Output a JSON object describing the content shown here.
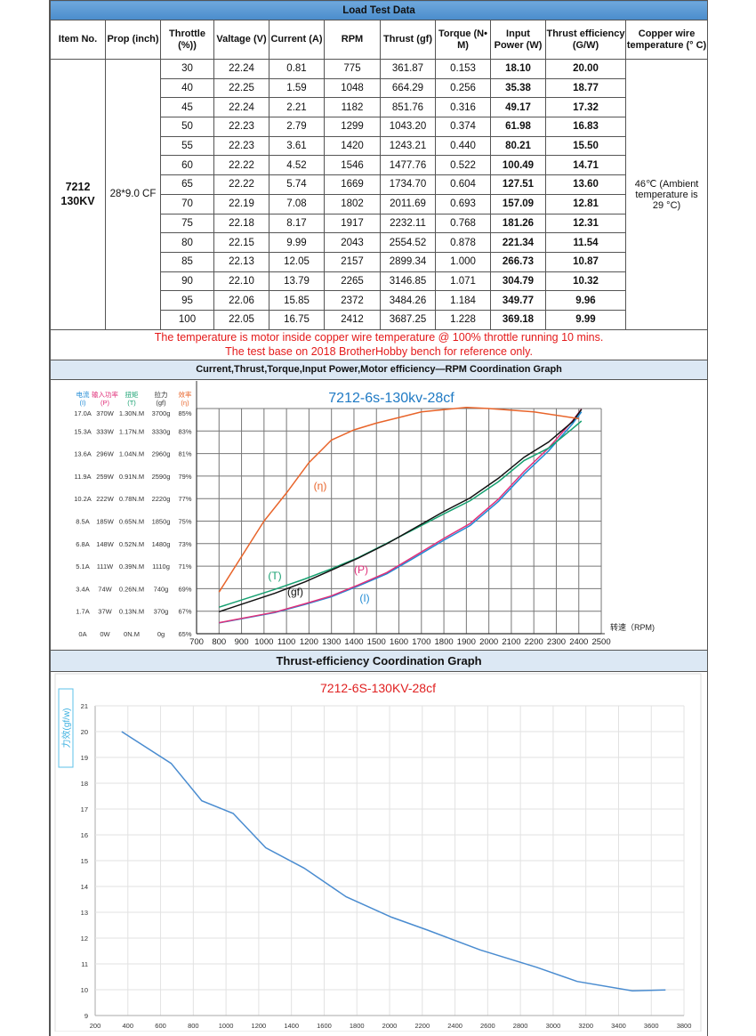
{
  "table": {
    "title": "Load Test Data",
    "headers": [
      "Item No.",
      "Prop (inch)",
      "Throttle (%))",
      "Valtage (V)",
      "Current (A)",
      "RPM",
      "Thrust (gf)",
      "Torque  (N• M)",
      "Input Power (W)",
      "Thrust efficiency (G/W)",
      "Copper wire temperature  (° C)"
    ],
    "item": "7212 130KV",
    "prop": "28*9.0 CF",
    "temperature": "46℃ (Ambient temperature is 29 °C)",
    "rows": [
      [
        "30",
        "22.24",
        "0.81",
        "775",
        "361.87",
        "0.153",
        "18.10",
        "20.00"
      ],
      [
        "40",
        "22.25",
        "1.59",
        "1048",
        "664.29",
        "0.256",
        "35.38",
        "18.77"
      ],
      [
        "45",
        "22.24",
        "2.21",
        "1182",
        "851.76",
        "0.316",
        "49.17",
        "17.32"
      ],
      [
        "50",
        "22.23",
        "2.79",
        "1299",
        "1043.20",
        "0.374",
        "61.98",
        "16.83"
      ],
      [
        "55",
        "22.23",
        "3.61",
        "1420",
        "1243.21",
        "0.440",
        "80.21",
        "15.50"
      ],
      [
        "60",
        "22.22",
        "4.52",
        "1546",
        "1477.76",
        "0.522",
        "100.49",
        "14.71"
      ],
      [
        "65",
        "22.22",
        "5.74",
        "1669",
        "1734.70",
        "0.604",
        "127.51",
        "13.60"
      ],
      [
        "70",
        "22.19",
        "7.08",
        "1802",
        "2011.69",
        "0.693",
        "157.09",
        "12.81"
      ],
      [
        "75",
        "22.18",
        "8.17",
        "1917",
        "2232.11",
        "0.768",
        "181.26",
        "12.31"
      ],
      [
        "80",
        "22.15",
        "9.99",
        "2043",
        "2554.52",
        "0.878",
        "221.34",
        "11.54"
      ],
      [
        "85",
        "22.13",
        "12.05",
        "2157",
        "2899.34",
        "1.000",
        "266.73",
        "10.87"
      ],
      [
        "90",
        "22.10",
        "13.79",
        "2265",
        "3146.85",
        "1.071",
        "304.79",
        "10.32"
      ],
      [
        "95",
        "22.06",
        "15.85",
        "2372",
        "3484.26",
        "1.184",
        "349.77",
        "9.96"
      ],
      [
        "100",
        "22.05",
        "16.75",
        "2412",
        "3687.25",
        "1.228",
        "369.18",
        "9.99"
      ]
    ],
    "note_line1": "The temperature is motor inside copper wire temperature @ 100% throttle running 10 mins.",
    "note_line2": "The test base on 2018 BrotherHobby bench  for reference only."
  },
  "chart_data": [
    {
      "type": "line",
      "section_title": "Current,Thrust,Torque,Input Power,Motor efficiency—RPM   Coordination Graph",
      "title": "7212-6s-130kv-28cf",
      "xlabel": "转速（RPM)",
      "xlim": [
        700,
        2500
      ],
      "x_ticks": [
        "700",
        "800",
        "900",
        "1000",
        "1100",
        "1200",
        "1300",
        "1400",
        "1500",
        "1600",
        "1700",
        "1800",
        "1900",
        "2000",
        "2100",
        "2200",
        "2300",
        "2400",
        "2500"
      ],
      "grid": true,
      "axes": [
        {
          "key": "I",
          "header": "电流",
          "unit": "(I)",
          "color": "#1f8ad4",
          "ticks": [
            "0A",
            "1.7A",
            "3.4A",
            "5.1A",
            "6.8A",
            "8.5A",
            "10.2A",
            "11.9A",
            "13.6A",
            "15.3A",
            "17.0A"
          ],
          "range": [
            0,
            17
          ]
        },
        {
          "key": "P",
          "header": "输入功率",
          "unit": "(P)",
          "color": "#e0307a",
          "ticks": [
            "0W",
            "37W",
            "74W",
            "111W",
            "148W",
            "185W",
            "222W",
            "259W",
            "296W",
            "333W",
            "370W"
          ],
          "range": [
            0,
            370
          ]
        },
        {
          "key": "T",
          "header": "扭矩",
          "unit": "(T)",
          "color": "#16a070",
          "ticks": [
            "0N.M",
            "0.13N.M",
            "0.26N.M",
            "0.39N.M",
            "0.52N.M",
            "0.65N.M",
            "0.78N.M",
            "0.91N.M",
            "1.04N.M",
            "1.17N.M",
            "1.30N.M"
          ],
          "range": [
            0,
            1.3
          ]
        },
        {
          "key": "gf",
          "header": "拉力",
          "unit": "(gf)",
          "color": "#333333",
          "ticks": [
            "0g",
            "370g",
            "740g",
            "1110g",
            "1480g",
            "1850g",
            "2220g",
            "2590g",
            "2960g",
            "3330g",
            "3700g"
          ],
          "range": [
            0,
            3700
          ]
        },
        {
          "key": "eta",
          "header": "效率",
          "unit": "(η)",
          "color": "#e8642a",
          "ticks": [
            "65%",
            "67%",
            "69%",
            "71%",
            "73%",
            "75%",
            "77%",
            "79%",
            "81%",
            "83%",
            "85%"
          ],
          "range": [
            65,
            85
          ]
        }
      ],
      "rpm": [
        775,
        1048,
        1182,
        1299,
        1420,
        1546,
        1669,
        1802,
        1917,
        2043,
        2157,
        2265,
        2372,
        2412
      ],
      "series": [
        {
          "name": "(I)",
          "key": "I",
          "color": "#1f8ad4",
          "values": [
            0.81,
            1.59,
            2.21,
            2.79,
            3.61,
            4.52,
            5.74,
            7.08,
            8.17,
            9.99,
            12.05,
            13.79,
            15.85,
            16.75
          ]
        },
        {
          "name": "(P)",
          "key": "P",
          "color": "#e0307a",
          "values": [
            18.1,
            35.38,
            49.17,
            61.98,
            80.21,
            100.49,
            127.51,
            157.09,
            181.26,
            221.34,
            266.73,
            304.79,
            349.77,
            369.18
          ]
        },
        {
          "name": "(T)",
          "key": "T",
          "color": "#16a070",
          "values": [
            0.153,
            0.256,
            0.316,
            0.374,
            0.44,
            0.522,
            0.604,
            0.693,
            0.768,
            0.878,
            1.0,
            1.071,
            1.184,
            1.228
          ]
        },
        {
          "name": "(gf)",
          "key": "gf",
          "color": "#111111",
          "values": [
            361.87,
            664.29,
            851.76,
            1043.2,
            1243.21,
            1477.76,
            1734.7,
            2011.69,
            2232.11,
            2554.52,
            2899.34,
            3146.85,
            3484.26,
            3687.25
          ]
        },
        {
          "name": "(η)",
          "key": "eta",
          "color": "#e8642a",
          "x": [
            800,
            1000,
            1100,
            1200,
            1250,
            1300,
            1400,
            1500,
            1600,
            1700,
            1800,
            1900,
            2000,
            2200,
            2400
          ],
          "values": [
            68.7,
            75.0,
            77.5,
            80.2,
            81.2,
            82.2,
            83.1,
            83.7,
            84.2,
            84.7,
            84.9,
            85.1,
            85.0,
            84.7,
            84.1
          ]
        }
      ]
    },
    {
      "type": "line",
      "section_title": "Thrust-efficiency Coordination Graph",
      "title": "7212-6S-130KV-28cf",
      "ylabel": "力效(gf/w)",
      "xlim": [
        200,
        3800
      ],
      "ylim": [
        9,
        21
      ],
      "x_ticks": [
        "200",
        "400",
        "600",
        "800",
        "1000",
        "1200",
        "1400",
        "1600",
        "1800",
        "2000",
        "2200",
        "2400",
        "2600",
        "2800",
        "3000",
        "3200",
        "3400",
        "3600",
        "3800"
      ],
      "y_ticks": [
        "9",
        "10",
        "11",
        "12",
        "13",
        "14",
        "15",
        "16",
        "17",
        "18",
        "19",
        "20",
        "21"
      ],
      "grid": true,
      "color": "#4a8cd0",
      "x": [
        361.87,
        664.29,
        851.76,
        1043.2,
        1243.21,
        1477.76,
        1734.7,
        2011.69,
        2232.11,
        2554.52,
        2899.34,
        3146.85,
        3484.26,
        3687.25
      ],
      "values": [
        20.0,
        18.77,
        17.32,
        16.83,
        15.5,
        14.71,
        13.6,
        12.81,
        12.31,
        11.54,
        10.87,
        10.32,
        9.96,
        9.99
      ]
    }
  ]
}
